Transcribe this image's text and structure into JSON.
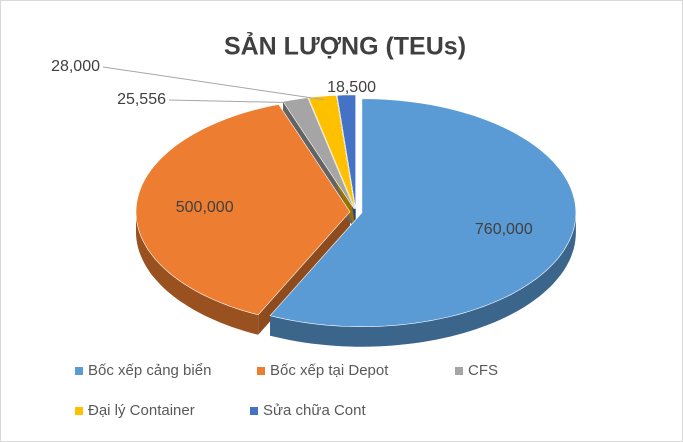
{
  "chart_data": {
    "type": "pie",
    "title": "SẢN LƯỢNG (TEUs)",
    "categories": [
      "Bốc xếp cảng biển",
      "Bốc xếp tại Depot",
      "CFS",
      "Đại lý Container",
      "Sửa chữa Cont"
    ],
    "values": [
      760000,
      500000,
      25556,
      28000,
      18500
    ],
    "value_labels": [
      "760,000",
      "500,000",
      "25,556",
      "28,000",
      "18,500"
    ],
    "colors": [
      "#5b9bd5",
      "#ed7d31",
      "#a5a5a5",
      "#ffc000",
      "#4472c4"
    ],
    "legend": "bottom"
  }
}
